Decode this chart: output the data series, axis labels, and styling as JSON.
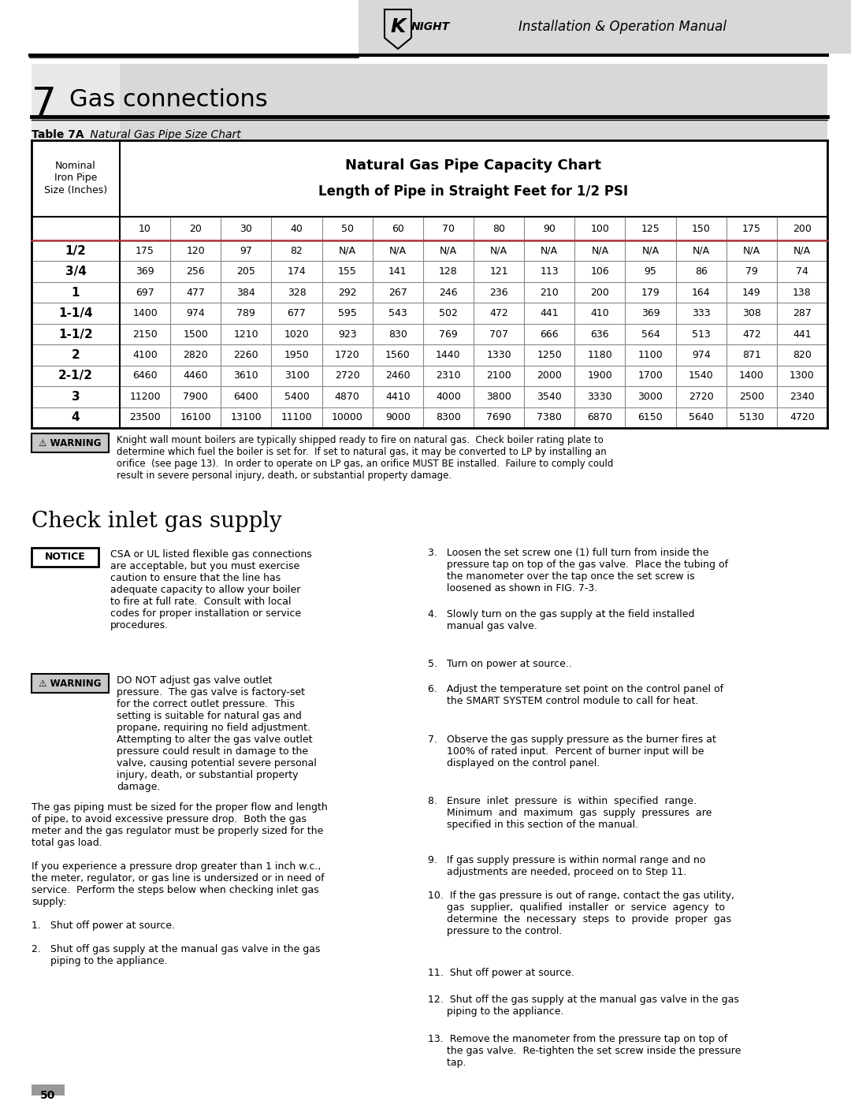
{
  "page_title_number": "7",
  "page_title_text": "Gas connections",
  "table_label": "Table 7A",
  "table_label_italic": " Natural Gas Pipe Size Chart",
  "table_header_line1": "Natural Gas Pipe Capacity Chart",
  "table_header_line2": "Length of Pipe in Straight Feet for 1/2 PSI",
  "col_header_left": "Nominal\nIron Pipe\nSize (Inches)",
  "col_lengths": [
    "10",
    "20",
    "30",
    "40",
    "50",
    "60",
    "70",
    "80",
    "90",
    "100",
    "125",
    "150",
    "175",
    "200"
  ],
  "pipe_sizes": [
    "1/2",
    "3/4",
    "1",
    "1-1/4",
    "1-1/2",
    "2",
    "2-1/2",
    "3",
    "4"
  ],
  "table_data": [
    [
      "175",
      "120",
      "97",
      "82",
      "N/A",
      "N/A",
      "N/A",
      "N/A",
      "N/A",
      "N/A",
      "N/A",
      "N/A",
      "N/A",
      "N/A"
    ],
    [
      "369",
      "256",
      "205",
      "174",
      "155",
      "141",
      "128",
      "121",
      "113",
      "106",
      "95",
      "86",
      "79",
      "74"
    ],
    [
      "697",
      "477",
      "384",
      "328",
      "292",
      "267",
      "246",
      "236",
      "210",
      "200",
      "179",
      "164",
      "149",
      "138"
    ],
    [
      "1400",
      "974",
      "789",
      "677",
      "595",
      "543",
      "502",
      "472",
      "441",
      "410",
      "369",
      "333",
      "308",
      "287"
    ],
    [
      "2150",
      "1500",
      "1210",
      "1020",
      "923",
      "830",
      "769",
      "707",
      "666",
      "636",
      "564",
      "513",
      "472",
      "441"
    ],
    [
      "4100",
      "2820",
      "2260",
      "1950",
      "1720",
      "1560",
      "1440",
      "1330",
      "1250",
      "1180",
      "1100",
      "974",
      "871",
      "820"
    ],
    [
      "6460",
      "4460",
      "3610",
      "3100",
      "2720",
      "2460",
      "2310",
      "2100",
      "2000",
      "1900",
      "1700",
      "1540",
      "1400",
      "1300"
    ],
    [
      "11200",
      "7900",
      "6400",
      "5400",
      "4870",
      "4410",
      "4000",
      "3800",
      "3540",
      "3330",
      "3000",
      "2720",
      "2500",
      "2340"
    ],
    [
      "23500",
      "16100",
      "13100",
      "11100",
      "10000",
      "9000",
      "8300",
      "7690",
      "7380",
      "6870",
      "6150",
      "5640",
      "5130",
      "4720"
    ]
  ],
  "warning_text1": "Knight wall mount boilers are typically shipped ready to fire on natural gas.  Check boiler rating plate to\ndetermine which fuel the boiler is set for.  If set to natural gas, it may be converted to LP by installing an\norifice  (see page 13).  In order to operate on LP gas, an orifice MUST BE installed.  Failure to comply could\nresult in severe personal injury, death, or substantial property damage.",
  "notice_text": "CSA or UL listed flexible gas connections\nare acceptable, but you must exercise\ncaution to ensure that the line has\nadequate capacity to allow your boiler\nto fire at full rate.  Consult with local\ncodes for proper installation or service\nprocedures.",
  "warning_text2": "DO NOT adjust gas valve outlet\npressure.  The gas valve is factory-set\nfor the correct outlet pressure.  This\nsetting is suitable for natural gas and\npropane, requiring no field adjustment.\nAttempting to alter the gas valve outlet\npressure could result in damage to the\nvalve, causing potential severe personal\ninjury, death, or substantial property\ndamage.",
  "bottom_left_text": "The gas piping must be sized for the proper flow and length\nof pipe, to avoid excessive pressure drop.  Both the gas\nmeter and the gas regulator must be properly sized for the\ntotal gas load.\n\nIf you experience a pressure drop greater than 1 inch w.c.,\nthe meter, regulator, or gas line is undersized or in need of\nservice.  Perform the steps below when checking inlet gas\nsupply:\n\n1.   Shut off power at source.\n\n2.   Shut off gas supply at the manual gas valve in the gas\n      piping to the appliance.",
  "numbered_items_right": [
    "3.   Loosen the set screw one (1) full turn from inside the\n      pressure tap on top of the gas valve.  Place the tubing of\n      the manometer over the tap once the set screw is\n      loosened as shown in FIG. 7-3.",
    "4.   Slowly turn on the gas supply at the field installed\n      manual gas valve.",
    "5.   Turn on power at source..",
    "6.   Adjust the temperature set point on the control panel of\n      the SMART SYSTEM control module to call for heat.",
    "7.   Observe the gas supply pressure as the burner fires at\n      100% of rated input.  Percent of burner input will be\n      displayed on the control panel.",
    "8.   Ensure  inlet  pressure  is  within  specified  range.\n      Minimum  and  maximum  gas  supply  pressures  are\n      specified in this section of the manual.",
    "9.   If gas supply pressure is within normal range and no\n      adjustments are needed, proceed on to Step 11.",
    "10.  If the gas pressure is out of range, contact the gas utility,\n      gas  supplier,  qualified  installer  or  service  agency  to\n      determine  the  necessary  steps  to  provide  proper  gas\n      pressure to the control.",
    "11.  Shut off power at source.",
    "12.  Shut off the gas supply at the manual gas valve in the gas\n      piping to the appliance.",
    "13.  Remove the manometer from the pressure tap on top of\n      the gas valve.  Re-tighten the set screw inside the pressure\n      tap."
  ],
  "check_inlet_title": "Check inlet gas supply",
  "page_number": "50",
  "header_bg_color": "#d8d8d8",
  "table_border_color": "#555555",
  "warning_bg_color": "#c8c8c8",
  "notice_bg_color": "#ffffff",
  "row_line_color": "#888888",
  "red_line_color": "#aa3333"
}
